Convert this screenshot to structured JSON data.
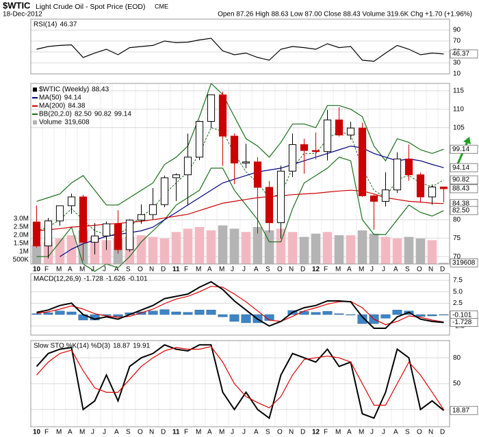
{
  "header": {
    "symbol": "$WTIC",
    "name": "Light Crude Oil - Spot Price (EOD)",
    "exchange": "CME",
    "date": "18-Dec-2012",
    "quote": "Open 87.26  High 88.63  Low 87.00  Close 88.43  Volume 319.6K  Chg +1.70 (+1.96%)"
  },
  "chart_data": [
    {
      "type": "line",
      "ylim": [
        10,
        110
      ],
      "yticks": [
        90,
        70,
        50,
        30,
        10
      ],
      "grid": true,
      "series": [
        {
          "name": "RSI(14)",
          "color": "#000000",
          "tag": 46.37,
          "values": [
            55,
            60,
            62,
            63,
            40,
            48,
            55,
            45,
            58,
            60,
            62,
            70,
            67,
            68,
            72,
            75,
            52,
            45,
            48,
            40,
            35,
            55,
            60,
            58,
            55,
            65,
            58,
            60,
            35,
            33,
            48,
            62,
            55,
            45,
            48,
            46.37
          ]
        }
      ]
    },
    {
      "type": "candlestick",
      "title": "$WTIC (Weekly)",
      "tag": 88.43,
      "up_color": "#000000",
      "down_color": "#cc0000",
      "categories": [
        "10",
        "F",
        "M",
        "A",
        "M",
        "J",
        "J",
        "A",
        "S",
        "O",
        "N",
        "D",
        "11",
        "F",
        "M",
        "A",
        "M",
        "J",
        "J",
        "A",
        "S",
        "O",
        "N",
        "D",
        "12",
        "F",
        "M",
        "A",
        "M",
        "J",
        "J",
        "A",
        "S",
        "O",
        "N",
        "D"
      ],
      "open": [
        79.4,
        72.9,
        79.7,
        83.8,
        86.2,
        73.9,
        75.6,
        78.9,
        71.9,
        79.9,
        81.4,
        84.1,
        91.4,
        92.2,
        97.0,
        106.7,
        113.9,
        102.7,
        95.4,
        95.7,
        88.8,
        79.2,
        93.2,
        100.4,
        98.8,
        98.5,
        107.1,
        103.0,
        104.9,
        86.5,
        85.0,
        88.1,
        96.5,
        92.2,
        86.2,
        88.9
      ],
      "high": [
        83.9,
        80.5,
        83.8,
        87.1,
        86.8,
        79.1,
        79.5,
        82.6,
        80.1,
        84.2,
        88.6,
        92.0,
        92.6,
        103.4,
        106.9,
        113.9,
        114.8,
        103.4,
        100.6,
        97.0,
        90.5,
        94.7,
        103.4,
        102.0,
        103.7,
        109.8,
        110.5,
        106.6,
        106.4,
        86.8,
        92.9,
        98.3,
        100.4,
        92.8,
        89.6,
        89.0
      ],
      "low": [
        72.4,
        69.5,
        78.4,
        81.6,
        68.9,
        70.6,
        71.8,
        70.8,
        71.3,
        78.9,
        80.1,
        83.4,
        85.1,
        84.1,
        96.2,
        104.9,
        94.6,
        89.7,
        94.0,
        76.3,
        76.6,
        74.9,
        91.6,
        92.5,
        96.4,
        96.1,
        102.6,
        101.7,
        86.2,
        77.3,
        83.6,
        87.3,
        90.6,
        84.9,
        84.1,
        84.7
      ],
      "close": [
        72.9,
        79.7,
        83.8,
        86.2,
        73.9,
        75.6,
        78.9,
        71.9,
        79.9,
        81.4,
        84.1,
        91.4,
        92.2,
        97.0,
        106.7,
        113.9,
        102.7,
        95.4,
        95.7,
        88.8,
        79.2,
        93.2,
        100.4,
        98.8,
        98.5,
        107.1,
        103.0,
        104.9,
        86.5,
        85.0,
        88.1,
        96.5,
        92.2,
        86.2,
        88.9,
        88.43
      ],
      "ylim": [
        68,
        117
      ],
      "yticks": [
        70,
        75,
        80,
        105,
        110,
        115
      ],
      "grid": true,
      "series": [
        {
          "name": "MA(50)",
          "color": "#000080",
          "tag": 94.14,
          "values": [
            null,
            null,
            70,
            72,
            73.5,
            74.5,
            75.5,
            76,
            76.5,
            77,
            78,
            80,
            82,
            84,
            86,
            88,
            90,
            91,
            92,
            93,
            93.5,
            94,
            95,
            96,
            97,
            98,
            99,
            100,
            99.5,
            98,
            97,
            96,
            96.5,
            96,
            95,
            94.14
          ]
        },
        {
          "name": "MA(200)",
          "color": "#cc0000",
          "tag": 84.38,
          "values": [
            77,
            77.3,
            77.6,
            78,
            78.2,
            78.5,
            78.8,
            79,
            79.3,
            79.6,
            80,
            80.5,
            81,
            81.5,
            82.5,
            83.5,
            84.5,
            85,
            85.5,
            86,
            86.3,
            86.5,
            86.8,
            87,
            87.2,
            87.5,
            87.8,
            88,
            87.8,
            87,
            86,
            85.5,
            85,
            84.8,
            84.5,
            84.38
          ]
        }
      ],
      "bands": {
        "name": "BB(20,2.0)",
        "color": "#1a6e1a",
        "tags": [
          {
            "value": 82.5,
            "label": "82.50"
          },
          90.82,
          99.14
        ],
        "lower": [
          70,
          70,
          74,
          78,
          68,
          66,
          68,
          67,
          70,
          74,
          77,
          80,
          84,
          86,
          88,
          94,
          94,
          88,
          84,
          80,
          74,
          74,
          83,
          90,
          92,
          94,
          97,
          96,
          80,
          76,
          76,
          80,
          84,
          82,
          81,
          82.5
        ],
        "middle": [
          77,
          78,
          80,
          83,
          80,
          77,
          76,
          76,
          78,
          81,
          83,
          87,
          90,
          93,
          98,
          105,
          104,
          98,
          93,
          90,
          86,
          87,
          94,
          98,
          98,
          102,
          104,
          103,
          94,
          88,
          86,
          91,
          92,
          90,
          89,
          90.82
        ],
        "upper": [
          85,
          86,
          87,
          90,
          92,
          88,
          84,
          84,
          86,
          88,
          90,
          95,
          97,
          100,
          108,
          117,
          114,
          108,
          102,
          100,
          97,
          101,
          106,
          106,
          105,
          111,
          111,
          110,
          108,
          100,
          96,
          102,
          101,
          99,
          98,
          99.14
        ]
      },
      "volume": {
        "name": "Volume",
        "tag": 319608,
        "tag_label": "319,608",
        "up_color": "#f2b8c2",
        "down_color": "#b4b4b4",
        "vlim": [
          250000,
          11250000
        ],
        "vticks": [
          {
            "value": 500000,
            "label": "500K"
          },
          {
            "value": 1000000,
            "label": "1M"
          },
          {
            "value": 1500000,
            "label": "1.5M"
          },
          {
            "value": 2000000,
            "label": "2.0M"
          },
          {
            "value": 2500000,
            "label": "2.5M"
          },
          {
            "value": 3000000,
            "label": "3.0M"
          }
        ],
        "values": [
          1400000,
          1600000,
          1800000,
          2000000,
          2300000,
          1900000,
          1700000,
          1800000,
          1900000,
          2000000,
          1900000,
          1800000,
          2200000,
          2400000,
          2500000,
          2300000,
          2600000,
          2400000,
          2200000,
          2500000,
          2300000,
          2400000,
          2200000,
          1900000,
          2100000,
          2200000,
          2000000,
          2000000,
          2300000,
          2100000,
          1900000,
          1800000,
          1900000,
          1800000,
          1700000,
          319608
        ]
      }
    },
    {
      "type": "macd",
      "title": "MACD(12,26,9)",
      "ylim": [
        -4.5,
        9
      ],
      "yticks": [
        7.5,
        {
          "value": 5,
          "label": "5.0"
        },
        2.5,
        -2.5
      ],
      "grid": true,
      "macd": {
        "color": "#000000",
        "tag": -1.728,
        "values": [
          0.5,
          1.0,
          2.0,
          2.5,
          0.0,
          -1.0,
          -0.5,
          -1.0,
          0.0,
          1.0,
          2.0,
          3.5,
          4.0,
          4.5,
          6.0,
          7.2,
          5.5,
          3.0,
          1.0,
          -1.0,
          -2.5,
          -1.5,
          0.5,
          1.5,
          2.0,
          3.0,
          3.0,
          2.8,
          -0.5,
          -3.0,
          -3.0,
          -0.5,
          0.5,
          -1.0,
          -1.5,
          -1.728
        ]
      },
      "signal": {
        "color": "#dd0000",
        "legend_value": -1.626,
        "values": [
          0.3,
          0.6,
          1.2,
          1.9,
          1.2,
          0.2,
          -0.3,
          -0.6,
          -0.4,
          0.4,
          1.2,
          2.4,
          3.4,
          4.0,
          5.0,
          6.2,
          6.0,
          4.5,
          2.8,
          0.8,
          -1.2,
          -1.5,
          -0.4,
          0.8,
          1.5,
          2.3,
          2.8,
          2.9,
          1.5,
          -1.0,
          -2.2,
          -1.5,
          -0.3,
          -0.6,
          -1.2,
          -1.626
        ]
      },
      "histogram": {
        "color": "#3d85c6",
        "tag": -0.101,
        "values": [
          0.2,
          0.4,
          0.8,
          0.6,
          -1.2,
          -1.2,
          -0.2,
          -0.4,
          0.4,
          0.6,
          0.8,
          1.1,
          0.6,
          0.5,
          1.0,
          1.0,
          -0.5,
          -1.5,
          -1.8,
          -1.8,
          -1.3,
          0.0,
          0.9,
          0.7,
          0.5,
          0.7,
          0.2,
          -0.1,
          -2.0,
          -2.0,
          -0.8,
          1.0,
          0.8,
          -0.4,
          -0.3,
          -0.101
        ]
      }
    },
    {
      "type": "line",
      "title": "Slow STO %K(14) %D(3)",
      "ylim": [
        0,
        100
      ],
      "yticks": [
        80,
        50,
        20
      ],
      "grid": true,
      "categories": [
        "10",
        "F",
        "M",
        "A",
        "M",
        "J",
        "J",
        "A",
        "S",
        "O",
        "N",
        "D",
        "11",
        "F",
        "M",
        "A",
        "M",
        "J",
        "J",
        "A",
        "S",
        "O",
        "N",
        "D",
        "12",
        "F",
        "M",
        "A",
        "M",
        "J",
        "J",
        "A",
        "S",
        "O",
        "N",
        "D"
      ],
      "series": [
        {
          "color": "#000000",
          "tag": 18.87,
          "values": [
            70,
            85,
            90,
            92,
            20,
            30,
            60,
            30,
            70,
            80,
            85,
            95,
            90,
            88,
            95,
            95,
            40,
            20,
            40,
            20,
            10,
            60,
            85,
            80,
            75,
            90,
            70,
            75,
            15,
            10,
            40,
            90,
            80,
            20,
            30,
            18.87
          ]
        },
        {
          "color": "#dd0000",
          "legend_value": 19.91,
          "values": [
            60,
            75,
            85,
            89,
            65,
            45,
            40,
            40,
            55,
            70,
            80,
            88,
            92,
            90,
            90,
            93,
            75,
            50,
            35,
            28,
            22,
            35,
            60,
            78,
            80,
            82,
            80,
            75,
            50,
            25,
            25,
            50,
            75,
            60,
            40,
            19.91
          ]
        }
      ]
    }
  ]
}
